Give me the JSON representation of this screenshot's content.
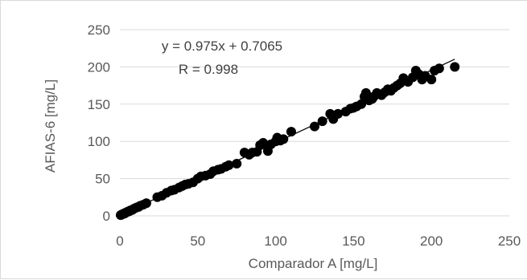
{
  "chart_data": {
    "type": "scatter",
    "title": "",
    "xlabel": "Comparador A [mg/L]",
    "ylabel": "AFIAS-6 [mg/L]",
    "xlim": [
      0,
      250
    ],
    "ylim": [
      0,
      250
    ],
    "x_ticks": [
      0,
      50,
      100,
      150,
      200,
      250
    ],
    "y_ticks": [
      0,
      50,
      100,
      150,
      200,
      250
    ],
    "grid": "horizontal",
    "legend": "none",
    "colors": {
      "points": "#000000",
      "trendline": "#000000",
      "grid": "#d9d9d9",
      "text": "#595959"
    },
    "annotations": {
      "equation": "y = 0.975x + 0.7065",
      "r_value": "R = 0.998"
    },
    "trendline": {
      "slope": 0.975,
      "intercept": 0.7065,
      "x_range": [
        0,
        215
      ]
    },
    "series": [
      {
        "points": [
          [
            0.5,
            1
          ],
          [
            1,
            1.5
          ],
          [
            1.5,
            2
          ],
          [
            2,
            2.5
          ],
          [
            2.5,
            3
          ],
          [
            3,
            3
          ],
          [
            3.5,
            4
          ],
          [
            4,
            4.5
          ],
          [
            4.5,
            5
          ],
          [
            5,
            5.5
          ],
          [
            5.5,
            6
          ],
          [
            6,
            6
          ],
          [
            6.5,
            7
          ],
          [
            7,
            7.5
          ],
          [
            8,
            8
          ],
          [
            9,
            9.5
          ],
          [
            10,
            10.5
          ],
          [
            11,
            11.5
          ],
          [
            12,
            12
          ],
          [
            13,
            13.5
          ],
          [
            15,
            15
          ],
          [
            17,
            17
          ],
          [
            24,
            25
          ],
          [
            27,
            27
          ],
          [
            30,
            31
          ],
          [
            33,
            34
          ],
          [
            35,
            35
          ],
          [
            38,
            38
          ],
          [
            40,
            40
          ],
          [
            42,
            42
          ],
          [
            44,
            43
          ],
          [
            47,
            45
          ],
          [
            50,
            50
          ],
          [
            52,
            53
          ],
          [
            55,
            54
          ],
          [
            58,
            56
          ],
          [
            60,
            60
          ],
          [
            63,
            62
          ],
          [
            65,
            63
          ],
          [
            68,
            66
          ],
          [
            70,
            68
          ],
          [
            75,
            70
          ],
          [
            80,
            85
          ],
          [
            83,
            82
          ],
          [
            85,
            85
          ],
          [
            88,
            86
          ],
          [
            90,
            95
          ],
          [
            92,
            98
          ],
          [
            95,
            87
          ],
          [
            97,
            96
          ],
          [
            100,
            100
          ],
          [
            101,
            105
          ],
          [
            103,
            101
          ],
          [
            105,
            103
          ],
          [
            110,
            113
          ],
          [
            125,
            120
          ],
          [
            130,
            127
          ],
          [
            135,
            137
          ],
          [
            137,
            130
          ],
          [
            140,
            137
          ],
          [
            145,
            140
          ],
          [
            148,
            144
          ],
          [
            150,
            145
          ],
          [
            152,
            147
          ],
          [
            155,
            150
          ],
          [
            157,
            160
          ],
          [
            158,
            165
          ],
          [
            160,
            155
          ],
          [
            162,
            157
          ],
          [
            163,
            160
          ],
          [
            165,
            165
          ],
          [
            168,
            162
          ],
          [
            170,
            166
          ],
          [
            172,
            170
          ],
          [
            174,
            168
          ],
          [
            176,
            172
          ],
          [
            178,
            175
          ],
          [
            180,
            178
          ],
          [
            182,
            185
          ],
          [
            185,
            180
          ],
          [
            188,
            186
          ],
          [
            190,
            195
          ],
          [
            192,
            190
          ],
          [
            194,
            183
          ],
          [
            196,
            188
          ],
          [
            200,
            183
          ],
          [
            202,
            195
          ],
          [
            205,
            198
          ],
          [
            215,
            200
          ]
        ]
      }
    ]
  }
}
